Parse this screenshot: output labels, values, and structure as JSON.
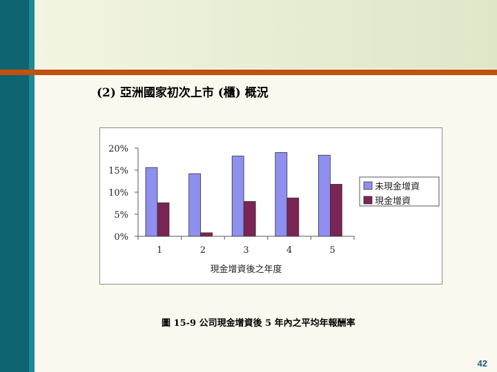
{
  "slide": {
    "title": "(2) 亞洲國家初次上市 (櫃) 概況",
    "caption": "圖 15-9  公司現金增資後 5 年內之平均年報酬率",
    "page_number": "42"
  },
  "colors": {
    "left_bar_dark": "#0e6470",
    "left_bar_light": "#1d8a96",
    "header_rule": "#c0520e",
    "series_1": "#8f8ff0",
    "series_2": "#7b2554"
  },
  "chart_data": {
    "type": "bar",
    "categories": [
      "1",
      "2",
      "3",
      "4",
      "5"
    ],
    "series": [
      {
        "name": "未現金增資",
        "values": [
          15.6,
          14.2,
          18.2,
          19.0,
          18.4
        ],
        "color": "#8f8ff0"
      },
      {
        "name": "現金增資",
        "values": [
          7.6,
          0.8,
          7.9,
          8.7,
          11.8
        ],
        "color": "#7b2554"
      }
    ],
    "xlabel": "現金增資後之年度",
    "ylabel": "",
    "ylim": [
      0,
      20
    ],
    "yticks": [
      0,
      5,
      10,
      15,
      20
    ],
    "ytick_labels": [
      "0%",
      "5%",
      "10%",
      "15%",
      "20%"
    ],
    "grid": false,
    "legend_position": "right"
  }
}
